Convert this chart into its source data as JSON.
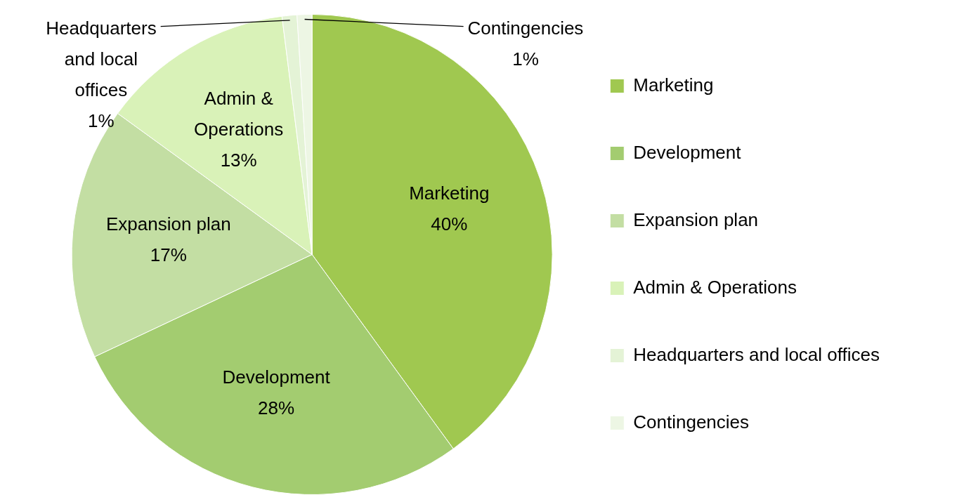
{
  "chart_data": {
    "type": "pie",
    "categories": [
      "Marketing",
      "Development",
      "Expansion plan",
      "Admin & Operations",
      "Headquarters and local offices",
      "Contingencies"
    ],
    "values": [
      40,
      28,
      17,
      13,
      1,
      1
    ],
    "value_labels": [
      "40%",
      "28%",
      "17%",
      "13%",
      "1%",
      "1%"
    ],
    "colors": [
      "#a0c850",
      "#a3cc70",
      "#c3dea3",
      "#d9f2b8",
      "#e4f3d6",
      "#edf6e4"
    ],
    "legend": "right"
  }
}
